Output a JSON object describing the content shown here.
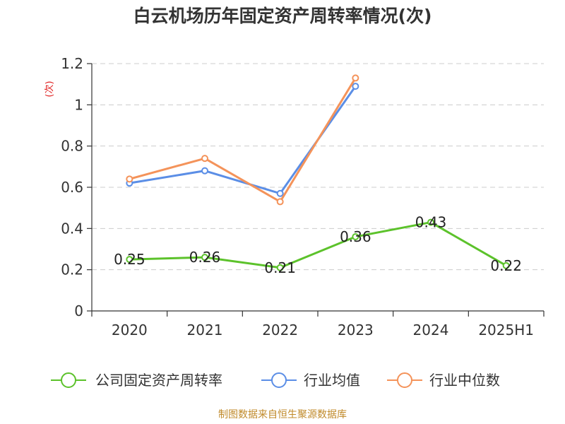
{
  "title": "白云机场历年固定资产周转率情况(次)",
  "source": "制图数据来自恒生聚源数据库",
  "chart_data": {
    "type": "line",
    "title": "白云机场历年固定资产周转率情况(次)",
    "ylabel": "(次)",
    "xlabel": "",
    "categories": [
      "2020",
      "2021",
      "2022",
      "2023",
      "2024",
      "2025H1"
    ],
    "y_ticks": [
      "0",
      "0.2",
      "0.4",
      "0.6",
      "0.8",
      "1",
      "1.2"
    ],
    "ylim": [
      0,
      1.2
    ],
    "grid": "horizontal dashed",
    "legend_position": "bottom",
    "series": [
      {
        "name": "公司固定资产周转率",
        "color": "#5cc22b",
        "values": [
          0.25,
          0.26,
          0.21,
          0.36,
          0.43,
          0.22
        ],
        "labels": [
          "0.25",
          "0.26",
          "0.21",
          "0.36",
          "0.43",
          "0.22"
        ]
      },
      {
        "name": "行业均值",
        "color": "#5b8ee6",
        "values": [
          0.62,
          0.68,
          0.57,
          1.09,
          null,
          null
        ]
      },
      {
        "name": "行业中位数",
        "color": "#f4935a",
        "values": [
          0.64,
          0.74,
          0.53,
          1.13,
          null,
          null
        ]
      }
    ]
  }
}
